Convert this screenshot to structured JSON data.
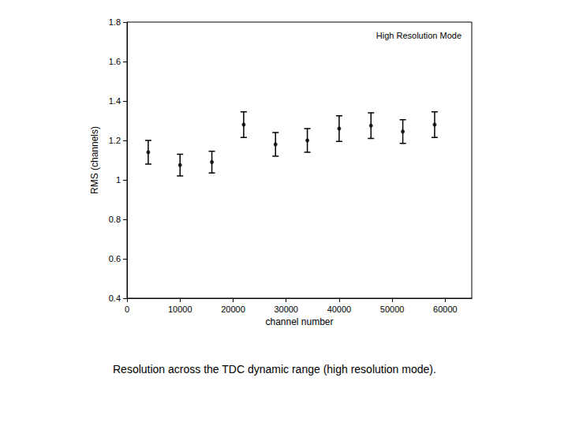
{
  "chart_data": {
    "type": "scatter",
    "title": "High Resolution Mode",
    "caption": "Resolution across the TDC dynamic range (high resolution mode).",
    "x_label": "channel number",
    "y_label": "RMS (channels)",
    "x": [
      4000,
      10000,
      16000,
      22000,
      28000,
      34000,
      40000,
      46000,
      52000,
      58000
    ],
    "values": [
      1.14,
      1.075,
      1.09,
      1.28,
      1.18,
      1.2,
      1.26,
      1.275,
      1.245,
      1.28
    ],
    "errors": [
      0.06,
      0.055,
      0.055,
      0.065,
      0.06,
      0.06,
      0.065,
      0.065,
      0.06,
      0.065
    ],
    "color": "#000000",
    "marker": "circle",
    "xlim": [
      0,
      65000
    ],
    "xticks": [
      0,
      10000,
      20000,
      30000,
      40000,
      50000,
      60000
    ],
    "ylim": [
      0.4,
      1.8
    ],
    "yticks": [
      0.4,
      0.6,
      0.8,
      1,
      1.2,
      1.4,
      1.6,
      1.8
    ],
    "grid": false
  }
}
